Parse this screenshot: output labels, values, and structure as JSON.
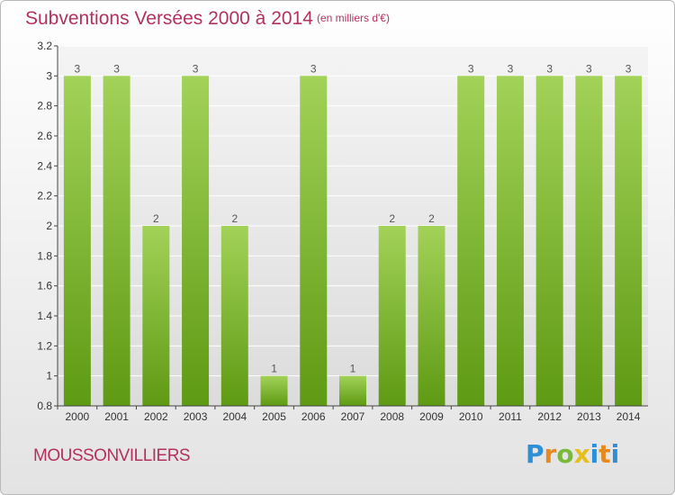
{
  "header": {
    "title": "Subventions Versées 2000 à 2014",
    "subtitle": "(en milliers d'€)"
  },
  "footer": {
    "town": "MOUSSONVILLIERS",
    "logo": [
      "P",
      "r",
      "o",
      "x",
      "i",
      "t",
      "i"
    ]
  },
  "colors": {
    "bar_top": "#a2d258",
    "bar_bottom": "#5e9a13",
    "title": "#b3315f",
    "grid": "#ffffff"
  },
  "chart_data": {
    "type": "bar",
    "categories": [
      "2000",
      "2001",
      "2002",
      "2003",
      "2004",
      "2005",
      "2006",
      "2007",
      "2008",
      "2009",
      "2010",
      "2011",
      "2012",
      "2013",
      "2014"
    ],
    "values": [
      3,
      3,
      2,
      3,
      2,
      1,
      3,
      1,
      2,
      2,
      3,
      3,
      3,
      3,
      3
    ],
    "data_labels": [
      "3",
      "3",
      "2",
      "3",
      "2",
      "1",
      "3",
      "1",
      "2",
      "2",
      "3",
      "3",
      "3",
      "3",
      "3"
    ],
    "y_ticks": [
      0.8,
      1,
      1.2,
      1.4,
      1.6,
      1.8,
      2,
      2.2,
      2.4,
      2.6,
      2.8,
      3,
      3.2
    ],
    "y_tick_labels": [
      "0.8",
      "1",
      "1.2",
      "1.4",
      "1.6",
      "1.8",
      "2",
      "2.2",
      "2.4",
      "2.6",
      "2.8",
      "3",
      "3.2"
    ],
    "ylim": [
      0.8,
      3.2
    ],
    "title": "Subventions Versées 2000 à 2014",
    "xlabel": "",
    "ylabel": "",
    "grid": true,
    "legend": "none"
  }
}
